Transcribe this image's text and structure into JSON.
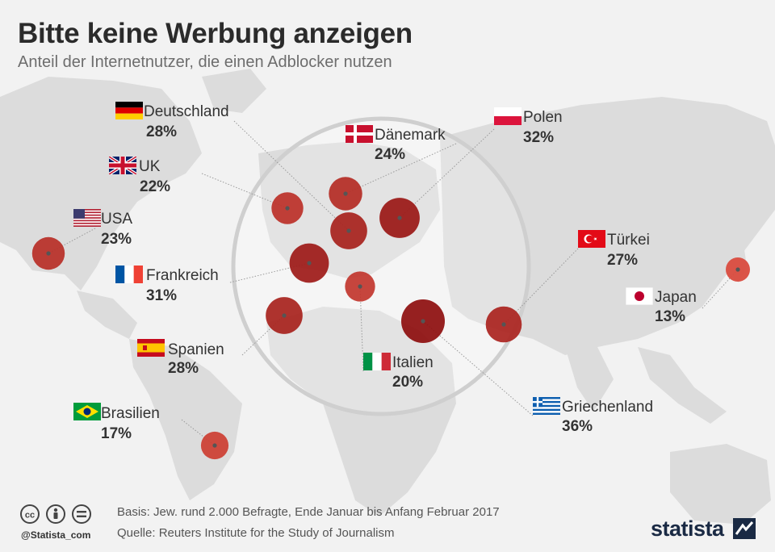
{
  "title": "Bitte keine Werbung anzeigen",
  "subtitle": "Anteil der Internetnutzer, die einen Adblocker nutzen",
  "footer": {
    "basis": "Basis: Jew. rund 2.000 Befragte, Ende Januar bis Anfang Februar 2017",
    "source": "Quelle: Reuters Institute for the Study of Journalism",
    "handle": "@Statista_com",
    "brand": "statista"
  },
  "colors": {
    "background": "#f2f2f2",
    "map_land": "#dcdcdc",
    "bubble_low": "#d9483b",
    "bubble_high": "#8e0f0f",
    "leader_line": "#9a9a9a"
  },
  "chart_data": {
    "type": "bubble-map",
    "title": "Bitte keine Werbung anzeigen",
    "subtitle": "Anteil der Internetnutzer, die einen Adblocker nutzen",
    "unit": "%",
    "countries": [
      {
        "name": "Deutschland",
        "value": 28,
        "value_label": "28%",
        "flag": "de"
      },
      {
        "name": "UK",
        "value": 22,
        "value_label": "22%",
        "flag": "gb"
      },
      {
        "name": "USA",
        "value": 23,
        "value_label": "23%",
        "flag": "us"
      },
      {
        "name": "Frankreich",
        "value": 31,
        "value_label": "31%",
        "flag": "fr"
      },
      {
        "name": "Spanien",
        "value": 28,
        "value_label": "28%",
        "flag": "es"
      },
      {
        "name": "Brasilien",
        "value": 17,
        "value_label": "17%",
        "flag": "br"
      },
      {
        "name": "Dänemark",
        "value": 24,
        "value_label": "24%",
        "flag": "dk"
      },
      {
        "name": "Polen",
        "value": 32,
        "value_label": "32%",
        "flag": "pl"
      },
      {
        "name": "Italien",
        "value": 20,
        "value_label": "20%",
        "flag": "it"
      },
      {
        "name": "Griechenland",
        "value": 36,
        "value_label": "36%",
        "flag": "gr"
      },
      {
        "name": "Türkei",
        "value": 27,
        "value_label": "27%",
        "flag": "tr"
      },
      {
        "name": "Japan",
        "value": 13,
        "value_label": "13%",
        "flag": "jp"
      }
    ]
  }
}
